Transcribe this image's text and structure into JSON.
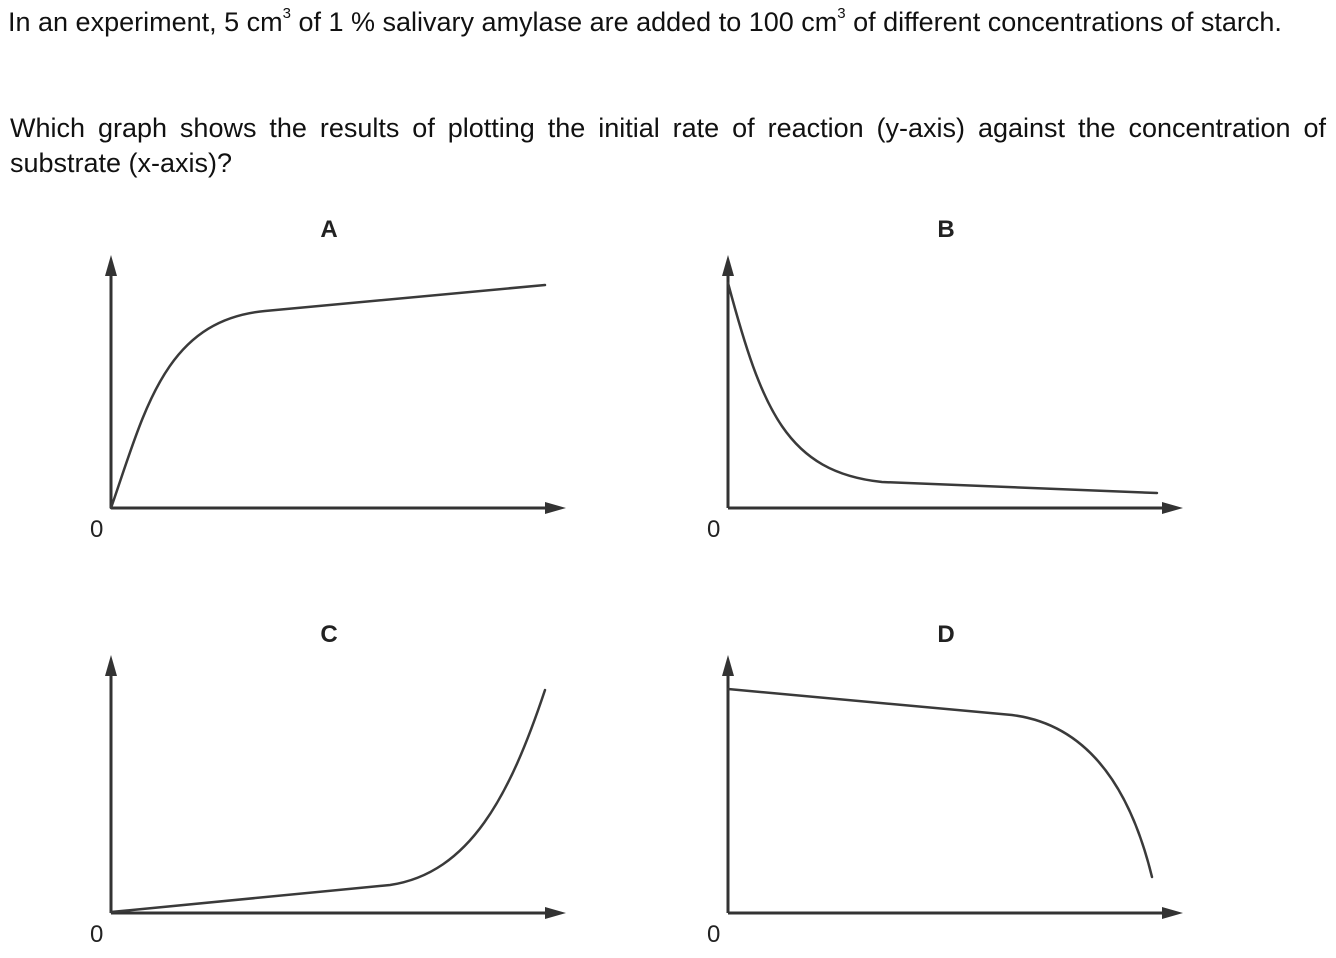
{
  "question": {
    "intro": {
      "part1": "In an experiment, 5 cm",
      "sup1": "3",
      "part2": " of 1 % salivary amylase are added to 100 cm",
      "sup2": "3",
      "part3": " of different concentrations of starch."
    },
    "prompt": "Which graph shows the results of plotting the initial rate of reaction (y-axis) against the concentration of substrate (x-axis)?"
  },
  "graphs": [
    {
      "label": "A",
      "origin_label": "0",
      "shape": "rapid-rise-then-gentle-increase"
    },
    {
      "label": "B",
      "origin_label": "0",
      "shape": "rapid-fall-then-level"
    },
    {
      "label": "C",
      "origin_label": "0",
      "shape": "gentle-increase-then-rapid-rise"
    },
    {
      "label": "D",
      "origin_label": "0",
      "shape": "gentle-decrease-then-rapid-fall"
    }
  ],
  "colors": {
    "text": "#111111",
    "axis": "#333333",
    "curve": "#3a3a3a",
    "background": "#ffffff"
  }
}
